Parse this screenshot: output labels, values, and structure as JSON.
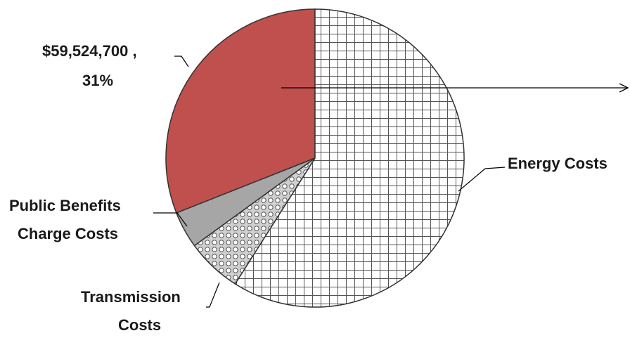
{
  "chart_data": {
    "type": "pie",
    "slices": [
      {
        "name": "",
        "label_lines": [
          "$59,524,700 ,",
          "31%"
        ],
        "value": 59524700,
        "percent": 31,
        "color": "#c0504d",
        "fill": "solid"
      },
      {
        "name": "Energy Costs",
        "label_lines": [
          "Energy Costs"
        ],
        "percent": 59,
        "fill": "grid",
        "color": "#ffffff"
      },
      {
        "name": "Transmission Costs",
        "label_lines": [
          "Transmission",
          "Costs"
        ],
        "percent": 6,
        "fill": "dots",
        "color": "#d9d9d9"
      },
      {
        "name": "Public Benefits Charge Costs",
        "label_lines": [
          "Public Benefits",
          "Charge Costs"
        ],
        "percent": 4,
        "fill": "solid",
        "color": "#a6a6a6"
      }
    ],
    "start_angle_deg": 0,
    "direction": "clockwise",
    "has_arrow": true
  }
}
